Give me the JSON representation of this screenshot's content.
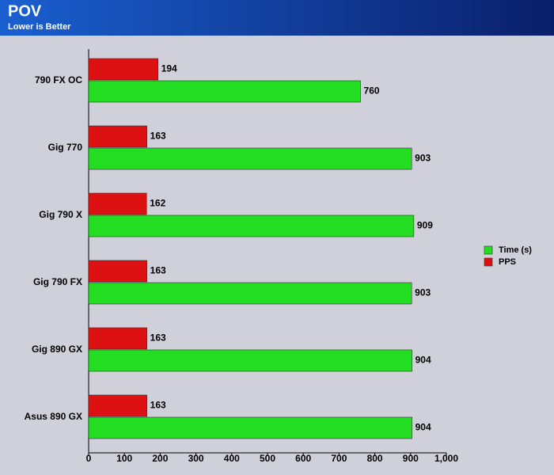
{
  "chart_data": {
    "type": "bar",
    "orientation": "horizontal",
    "title": "POV",
    "subtitle": "Lower is Better",
    "categories": [
      "790 FX OC",
      "Gig 770",
      "Gig 790 X",
      "Gig 790 FX",
      "Gig 890 GX",
      "Asus 890 GX"
    ],
    "series": [
      {
        "name": "Time (s)",
        "color": "#22dd22",
        "values": [
          760,
          903,
          909,
          903,
          904,
          904
        ]
      },
      {
        "name": "PPS",
        "color": "#dd1111",
        "values": [
          194,
          163,
          162,
          163,
          163,
          163
        ]
      }
    ],
    "xlim": [
      0,
      1000
    ],
    "xticks": [
      0,
      100,
      200,
      300,
      400,
      500,
      600,
      700,
      800,
      900,
      {
        "value": 1000,
        "label": "1,000"
      }
    ],
    "grid": false,
    "legend": "right"
  }
}
